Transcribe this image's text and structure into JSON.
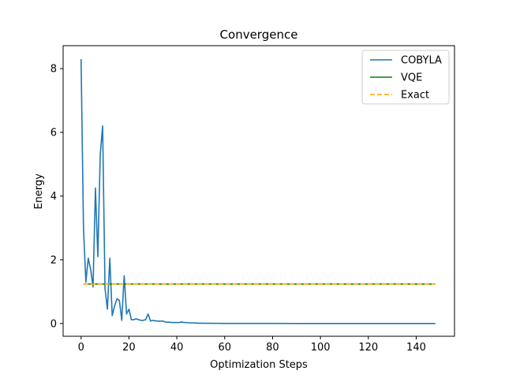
{
  "chart_data": {
    "type": "line",
    "title": "Convergence",
    "xlabel": "Optimization Steps",
    "ylabel": "Energy",
    "xlim": [
      -7.5,
      156
    ],
    "ylim": [
      -0.4,
      8.72
    ],
    "xticks": [
      0,
      20,
      40,
      60,
      80,
      100,
      120,
      140
    ],
    "yticks": [
      0,
      2,
      4,
      6,
      8
    ],
    "grid": false,
    "legend": "top-right",
    "series": [
      {
        "name": "COBYLA",
        "color": "#1f77b4",
        "style": "solid",
        "x": [
          0,
          1,
          2,
          3,
          4,
          5,
          6,
          7,
          8,
          9,
          10,
          11,
          12,
          13,
          14,
          15,
          16,
          17,
          18,
          19,
          20,
          21,
          22,
          23,
          24,
          25,
          26,
          27,
          28,
          29,
          30,
          31,
          32,
          33,
          34,
          35,
          36,
          37,
          38,
          39,
          40,
          41,
          42,
          43,
          44,
          45,
          46,
          47,
          48,
          49,
          50,
          55,
          60,
          65,
          70,
          80,
          90,
          100,
          110,
          120,
          130,
          140,
          148
        ],
        "y": [
          8.3,
          3.0,
          1.3,
          2.05,
          1.7,
          1.15,
          4.25,
          2.1,
          5.3,
          6.2,
          1.1,
          0.45,
          2.05,
          0.25,
          0.55,
          0.78,
          0.72,
          0.1,
          1.5,
          0.3,
          0.45,
          0.12,
          0.12,
          0.15,
          0.12,
          0.1,
          0.1,
          0.12,
          0.3,
          0.08,
          0.1,
          0.08,
          0.08,
          0.07,
          0.08,
          0.05,
          0.04,
          0.04,
          0.03,
          0.03,
          0.03,
          0.03,
          0.05,
          0.03,
          0.03,
          0.02,
          0.02,
          0.02,
          0.015,
          0.01,
          0.01,
          0.006,
          0.004,
          0.003,
          0.002,
          0.002,
          0.001,
          0.001,
          0.001,
          0.0,
          0.0,
          0.0,
          0.0
        ]
      },
      {
        "name": "VQE",
        "color": "#008000",
        "style": "solid",
        "x": [
          1,
          148
        ],
        "y": [
          1.24,
          1.24
        ]
      },
      {
        "name": "Exact",
        "color": "#ffa500",
        "style": "dashed",
        "x": [
          1,
          148
        ],
        "y": [
          1.24,
          1.24
        ]
      }
    ]
  }
}
